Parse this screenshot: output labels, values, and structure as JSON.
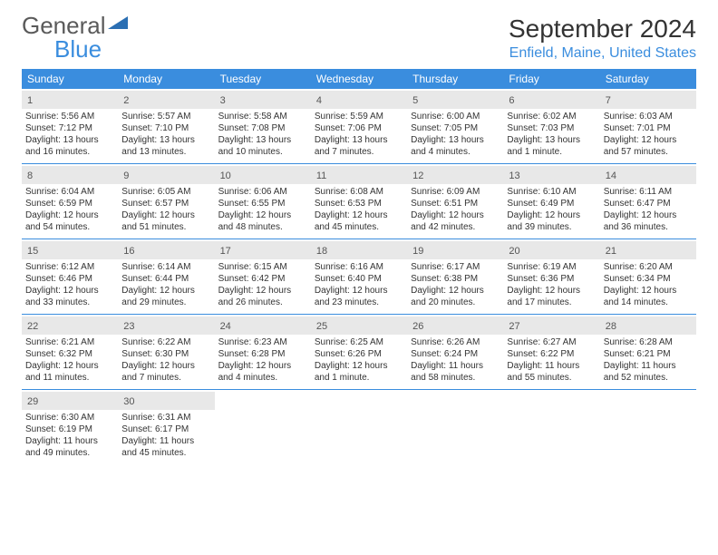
{
  "logo": {
    "text_general": "General",
    "text_blue": "Blue"
  },
  "title": "September 2024",
  "location": "Enfield, Maine, United States",
  "colors": {
    "accent": "#3a8dde",
    "header_bg": "#3a8dde",
    "daynum_bg": "#e8e8e8",
    "text": "#333333"
  },
  "day_names": [
    "Sunday",
    "Monday",
    "Tuesday",
    "Wednesday",
    "Thursday",
    "Friday",
    "Saturday"
  ],
  "weeks": [
    [
      {
        "n": "1",
        "sr": "Sunrise: 5:56 AM",
        "ss": "Sunset: 7:12 PM",
        "d1": "Daylight: 13 hours",
        "d2": "and 16 minutes."
      },
      {
        "n": "2",
        "sr": "Sunrise: 5:57 AM",
        "ss": "Sunset: 7:10 PM",
        "d1": "Daylight: 13 hours",
        "d2": "and 13 minutes."
      },
      {
        "n": "3",
        "sr": "Sunrise: 5:58 AM",
        "ss": "Sunset: 7:08 PM",
        "d1": "Daylight: 13 hours",
        "d2": "and 10 minutes."
      },
      {
        "n": "4",
        "sr": "Sunrise: 5:59 AM",
        "ss": "Sunset: 7:06 PM",
        "d1": "Daylight: 13 hours",
        "d2": "and 7 minutes."
      },
      {
        "n": "5",
        "sr": "Sunrise: 6:00 AM",
        "ss": "Sunset: 7:05 PM",
        "d1": "Daylight: 13 hours",
        "d2": "and 4 minutes."
      },
      {
        "n": "6",
        "sr": "Sunrise: 6:02 AM",
        "ss": "Sunset: 7:03 PM",
        "d1": "Daylight: 13 hours",
        "d2": "and 1 minute."
      },
      {
        "n": "7",
        "sr": "Sunrise: 6:03 AM",
        "ss": "Sunset: 7:01 PM",
        "d1": "Daylight: 12 hours",
        "d2": "and 57 minutes."
      }
    ],
    [
      {
        "n": "8",
        "sr": "Sunrise: 6:04 AM",
        "ss": "Sunset: 6:59 PM",
        "d1": "Daylight: 12 hours",
        "d2": "and 54 minutes."
      },
      {
        "n": "9",
        "sr": "Sunrise: 6:05 AM",
        "ss": "Sunset: 6:57 PM",
        "d1": "Daylight: 12 hours",
        "d2": "and 51 minutes."
      },
      {
        "n": "10",
        "sr": "Sunrise: 6:06 AM",
        "ss": "Sunset: 6:55 PM",
        "d1": "Daylight: 12 hours",
        "d2": "and 48 minutes."
      },
      {
        "n": "11",
        "sr": "Sunrise: 6:08 AM",
        "ss": "Sunset: 6:53 PM",
        "d1": "Daylight: 12 hours",
        "d2": "and 45 minutes."
      },
      {
        "n": "12",
        "sr": "Sunrise: 6:09 AM",
        "ss": "Sunset: 6:51 PM",
        "d1": "Daylight: 12 hours",
        "d2": "and 42 minutes."
      },
      {
        "n": "13",
        "sr": "Sunrise: 6:10 AM",
        "ss": "Sunset: 6:49 PM",
        "d1": "Daylight: 12 hours",
        "d2": "and 39 minutes."
      },
      {
        "n": "14",
        "sr": "Sunrise: 6:11 AM",
        "ss": "Sunset: 6:47 PM",
        "d1": "Daylight: 12 hours",
        "d2": "and 36 minutes."
      }
    ],
    [
      {
        "n": "15",
        "sr": "Sunrise: 6:12 AM",
        "ss": "Sunset: 6:46 PM",
        "d1": "Daylight: 12 hours",
        "d2": "and 33 minutes."
      },
      {
        "n": "16",
        "sr": "Sunrise: 6:14 AM",
        "ss": "Sunset: 6:44 PM",
        "d1": "Daylight: 12 hours",
        "d2": "and 29 minutes."
      },
      {
        "n": "17",
        "sr": "Sunrise: 6:15 AM",
        "ss": "Sunset: 6:42 PM",
        "d1": "Daylight: 12 hours",
        "d2": "and 26 minutes."
      },
      {
        "n": "18",
        "sr": "Sunrise: 6:16 AM",
        "ss": "Sunset: 6:40 PM",
        "d1": "Daylight: 12 hours",
        "d2": "and 23 minutes."
      },
      {
        "n": "19",
        "sr": "Sunrise: 6:17 AM",
        "ss": "Sunset: 6:38 PM",
        "d1": "Daylight: 12 hours",
        "d2": "and 20 minutes."
      },
      {
        "n": "20",
        "sr": "Sunrise: 6:19 AM",
        "ss": "Sunset: 6:36 PM",
        "d1": "Daylight: 12 hours",
        "d2": "and 17 minutes."
      },
      {
        "n": "21",
        "sr": "Sunrise: 6:20 AM",
        "ss": "Sunset: 6:34 PM",
        "d1": "Daylight: 12 hours",
        "d2": "and 14 minutes."
      }
    ],
    [
      {
        "n": "22",
        "sr": "Sunrise: 6:21 AM",
        "ss": "Sunset: 6:32 PM",
        "d1": "Daylight: 12 hours",
        "d2": "and 11 minutes."
      },
      {
        "n": "23",
        "sr": "Sunrise: 6:22 AM",
        "ss": "Sunset: 6:30 PM",
        "d1": "Daylight: 12 hours",
        "d2": "and 7 minutes."
      },
      {
        "n": "24",
        "sr": "Sunrise: 6:23 AM",
        "ss": "Sunset: 6:28 PM",
        "d1": "Daylight: 12 hours",
        "d2": "and 4 minutes."
      },
      {
        "n": "25",
        "sr": "Sunrise: 6:25 AM",
        "ss": "Sunset: 6:26 PM",
        "d1": "Daylight: 12 hours",
        "d2": "and 1 minute."
      },
      {
        "n": "26",
        "sr": "Sunrise: 6:26 AM",
        "ss": "Sunset: 6:24 PM",
        "d1": "Daylight: 11 hours",
        "d2": "and 58 minutes."
      },
      {
        "n": "27",
        "sr": "Sunrise: 6:27 AM",
        "ss": "Sunset: 6:22 PM",
        "d1": "Daylight: 11 hours",
        "d2": "and 55 minutes."
      },
      {
        "n": "28",
        "sr": "Sunrise: 6:28 AM",
        "ss": "Sunset: 6:21 PM",
        "d1": "Daylight: 11 hours",
        "d2": "and 52 minutes."
      }
    ],
    [
      {
        "n": "29",
        "sr": "Sunrise: 6:30 AM",
        "ss": "Sunset: 6:19 PM",
        "d1": "Daylight: 11 hours",
        "d2": "and 49 minutes."
      },
      {
        "n": "30",
        "sr": "Sunrise: 6:31 AM",
        "ss": "Sunset: 6:17 PM",
        "d1": "Daylight: 11 hours",
        "d2": "and 45 minutes."
      },
      null,
      null,
      null,
      null,
      null
    ]
  ]
}
